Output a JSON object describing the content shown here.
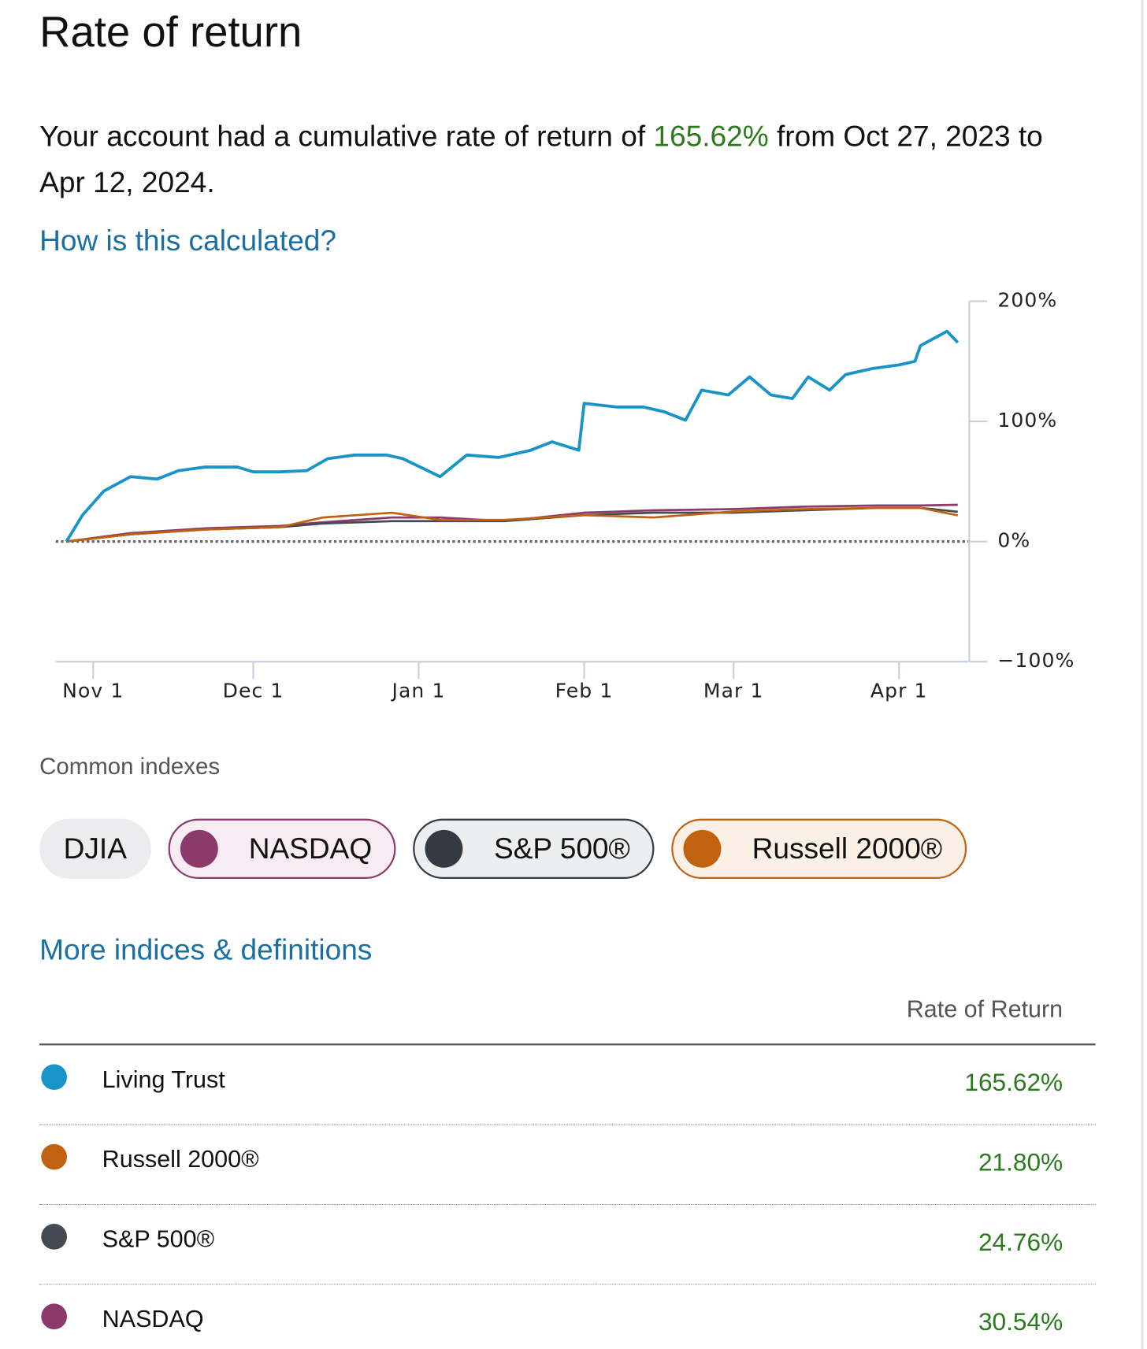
{
  "title": "Rate of return",
  "summary": {
    "before": "Your account had a cumulative rate of return of",
    "rate": "165.62%",
    "after": "from Oct 27, 2023 to Apr 12, 2024."
  },
  "help_link": "How is this calculated?",
  "chart_data": {
    "type": "line",
    "xlim": [
      "Oct 25",
      "Apr 14"
    ],
    "xticks": [
      "Nov 1",
      "Dec 1",
      "Jan 1",
      "Feb 1",
      "Mar 1",
      "Apr 1"
    ],
    "ylim": [
      -100,
      200
    ],
    "yticks": [
      {
        "value": 200,
        "label": "200%"
      },
      {
        "value": 100,
        "label": "100%"
      },
      {
        "value": 0,
        "label": "0%"
      },
      {
        "value": -100,
        "label": "−100%"
      }
    ],
    "zero_line": true,
    "series": [
      {
        "name": "Living Trust",
        "color": "#1a93c9",
        "x": [
          "Oct 27",
          "Oct 30",
          "Nov 3",
          "Nov 8",
          "Nov 13",
          "Nov 17",
          "Nov 22",
          "Nov 28",
          "Dec 1",
          "Dec 6",
          "Dec 11",
          "Dec 15",
          "Dec 20",
          "Dec 26",
          "Dec 29",
          "Jan 5",
          "Jan 10",
          "Jan 16",
          "Jan 22",
          "Jan 26",
          "Jan 31",
          "Feb 1",
          "Feb 7",
          "Feb 12",
          "Feb 16",
          "Feb 20",
          "Feb 23",
          "Feb 28",
          "Mar 4",
          "Mar 8",
          "Mar 12",
          "Mar 15",
          "Mar 19",
          "Mar 22",
          "Mar 27",
          "Apr 1",
          "Apr 4",
          "Apr 5",
          "Apr 10",
          "Apr 12"
        ],
        "values": [
          0,
          22,
          42,
          54,
          52,
          59,
          62,
          62,
          58,
          58,
          59,
          69,
          72,
          72,
          69,
          54,
          72,
          70,
          76,
          83,
          76,
          115,
          112,
          112,
          108,
          101,
          126,
          122,
          137,
          122,
          119,
          137,
          126,
          139,
          144,
          147,
          150,
          163,
          175,
          165.62
        ]
      },
      {
        "name": "Russell 2000®",
        "color": "#c0620f",
        "x": [
          "Oct 27",
          "Nov 8",
          "Nov 22",
          "Dec 6",
          "Dec 14",
          "Dec 27",
          "Jan 5",
          "Jan 17",
          "Feb 1",
          "Feb 14",
          "Mar 1",
          "Mar 14",
          "Mar 28",
          "Apr 5",
          "Apr 12"
        ],
        "values": [
          0,
          6,
          10,
          12,
          20,
          24,
          18,
          18,
          22,
          20,
          25,
          27,
          28,
          28,
          21.8
        ]
      },
      {
        "name": "S&P 500®",
        "color": "#434a52",
        "x": [
          "Oct 27",
          "Nov 8",
          "Nov 22",
          "Dec 6",
          "Dec 14",
          "Dec 27",
          "Jan 5",
          "Jan 17",
          "Feb 1",
          "Feb 14",
          "Mar 1",
          "Mar 14",
          "Mar 28",
          "Apr 5",
          "Apr 12"
        ],
        "values": [
          0,
          6,
          10,
          12,
          15,
          17,
          17,
          17,
          22,
          24,
          24,
          26,
          28,
          28,
          24.76
        ]
      },
      {
        "name": "NASDAQ",
        "color": "#8b3a6a",
        "x": [
          "Oct 27",
          "Nov 8",
          "Nov 22",
          "Dec 6",
          "Dec 14",
          "Dec 27",
          "Jan 5",
          "Jan 17",
          "Feb 1",
          "Feb 14",
          "Mar 1",
          "Mar 14",
          "Mar 28",
          "Apr 5",
          "Apr 12"
        ],
        "values": [
          0,
          7,
          11,
          13,
          16,
          20,
          20,
          17,
          24,
          26,
          27,
          29,
          30,
          30,
          30.54
        ]
      }
    ]
  },
  "indexes": {
    "label": "Common indexes",
    "chips": [
      {
        "name": "DJIA",
        "selected": false
      },
      {
        "name": "NASDAQ",
        "selected": true,
        "color": "#8b3a6a",
        "background": "#f6ecf1"
      },
      {
        "name": "S&P 500®",
        "selected": true,
        "color": "#333a42",
        "background": "#eceef0"
      },
      {
        "name": "Russell 2000®",
        "selected": true,
        "color": "#c0620f",
        "background": "#fbf0e6"
      }
    ]
  },
  "more_link": "More indices & definitions",
  "table": {
    "header": "Rate of Return",
    "rows": [
      {
        "name": "Living Trust",
        "color": "#1a93c9",
        "value": "165.62%"
      },
      {
        "name": "Russell 2000®",
        "color": "#c0620f",
        "value": "21.80%"
      },
      {
        "name": "S&P 500®",
        "color": "#434a52",
        "value": "24.76%"
      },
      {
        "name": "NASDAQ",
        "color": "#8b3a6a",
        "value": "30.54%"
      }
    ]
  }
}
